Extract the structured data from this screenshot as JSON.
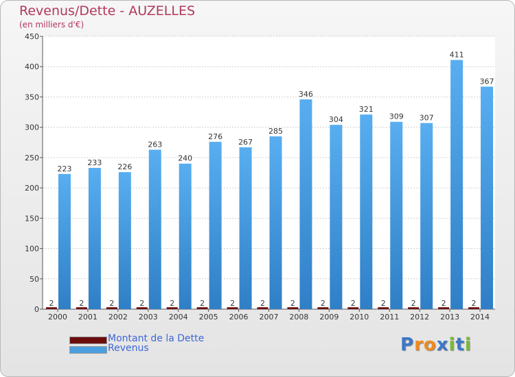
{
  "chart_data": {
    "type": "bar",
    "title": "Revenus/Dette - AUZELLES",
    "subtitle": "(en milliers d'€)",
    "xlabel": "",
    "ylabel": "",
    "ylim": [
      0,
      450
    ],
    "yticks": [
      0,
      50,
      100,
      150,
      200,
      250,
      300,
      350,
      400,
      450
    ],
    "grid": true,
    "categories": [
      "2000",
      "2001",
      "2002",
      "2003",
      "2004",
      "2005",
      "2006",
      "2007",
      "2008",
      "2009",
      "2010",
      "2011",
      "2012",
      "2013",
      "2014"
    ],
    "series": [
      {
        "name": "Montant de la Dette",
        "color": "#6b0d0d",
        "values": [
          2,
          2,
          2,
          2,
          2,
          2,
          2,
          2,
          2,
          2,
          2,
          2,
          2,
          2,
          2
        ]
      },
      {
        "name": "Revenus",
        "color": "#4a9fe0",
        "values": [
          223,
          233,
          226,
          263,
          240,
          276,
          267,
          285,
          346,
          304,
          321,
          309,
          307,
          411,
          367
        ]
      }
    ],
    "legend_position": "bottom-left"
  },
  "logo": {
    "text": "Proxiti",
    "letters": [
      "P",
      "r",
      "o",
      "x",
      "i",
      "t",
      "i"
    ],
    "colors": [
      "#3c78c8",
      "#f08a1e",
      "#f08a1e",
      "#3c78c8",
      "#7bb83a",
      "#3c78c8",
      "#7bb83a"
    ]
  }
}
